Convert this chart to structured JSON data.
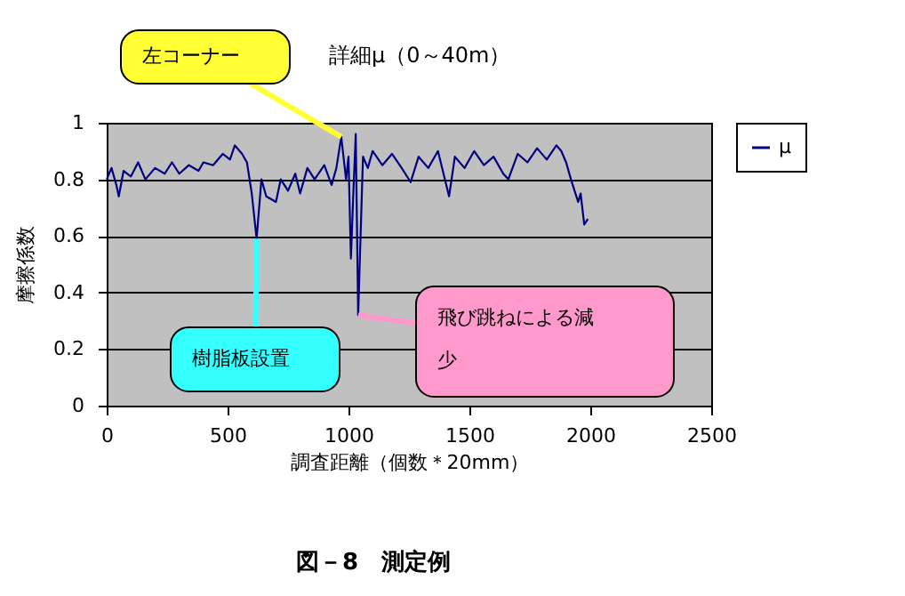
{
  "chart_data": {
    "type": "line",
    "title": "詳細μ（0～40m）",
    "xlabel": "調査距離（個数＊20mm）",
    "ylabel": "摩擦係数",
    "xlim": [
      0,
      2500
    ],
    "xticks": [
      0,
      500,
      1000,
      1500,
      2000,
      2500
    ],
    "ylim": [
      0,
      1
    ],
    "yticks": [
      0,
      0.2,
      0.4,
      0.6,
      0.8,
      1
    ],
    "grid": "y",
    "legend": "right",
    "line_style": "solid",
    "marker": "none",
    "series": [
      {
        "name": "μ",
        "color": "#000080",
        "x": [
          0,
          20,
          40,
          50,
          70,
          100,
          130,
          160,
          200,
          240,
          270,
          300,
          340,
          380,
          400,
          440,
          480,
          510,
          530,
          560,
          580,
          600,
          620,
          640,
          660,
          700,
          720,
          750,
          780,
          800,
          830,
          860,
          900,
          930,
          950,
          970,
          990,
          1000,
          1010,
          1020,
          1030,
          1040,
          1060,
          1080,
          1100,
          1140,
          1180,
          1220,
          1257,
          1290,
          1330,
          1370,
          1416,
          1440,
          1480,
          1520,
          1560,
          1600,
          1640,
          1661,
          1700,
          1740,
          1780,
          1820,
          1860,
          1880,
          1900,
          1920,
          1931,
          1950,
          1960,
          1975,
          1990
        ],
        "values": [
          0.8,
          0.84,
          0.78,
          0.74,
          0.83,
          0.81,
          0.86,
          0.8,
          0.84,
          0.82,
          0.86,
          0.82,
          0.85,
          0.83,
          0.86,
          0.85,
          0.89,
          0.87,
          0.92,
          0.89,
          0.86,
          0.75,
          0.59,
          0.8,
          0.74,
          0.72,
          0.8,
          0.76,
          0.82,
          0.75,
          0.84,
          0.8,
          0.85,
          0.78,
          0.84,
          0.95,
          0.8,
          0.88,
          0.52,
          0.75,
          0.96,
          0.32,
          0.88,
          0.84,
          0.9,
          0.85,
          0.89,
          0.84,
          0.79,
          0.88,
          0.84,
          0.9,
          0.74,
          0.88,
          0.84,
          0.9,
          0.85,
          0.88,
          0.82,
          0.8,
          0.89,
          0.86,
          0.91,
          0.87,
          0.92,
          0.9,
          0.86,
          0.8,
          0.77,
          0.72,
          0.75,
          0.64,
          0.66
        ]
      }
    ],
    "annotations": [
      {
        "text": "左コーナー",
        "x": 970,
        "y": 0.95
      },
      {
        "text": "樹脂板設置",
        "x": 620,
        "y": 0.59
      },
      {
        "text": "飛び跳ねによる減少",
        "x": 1040,
        "y": 0.32
      },
      "図－8　測定例"
    ]
  }
}
